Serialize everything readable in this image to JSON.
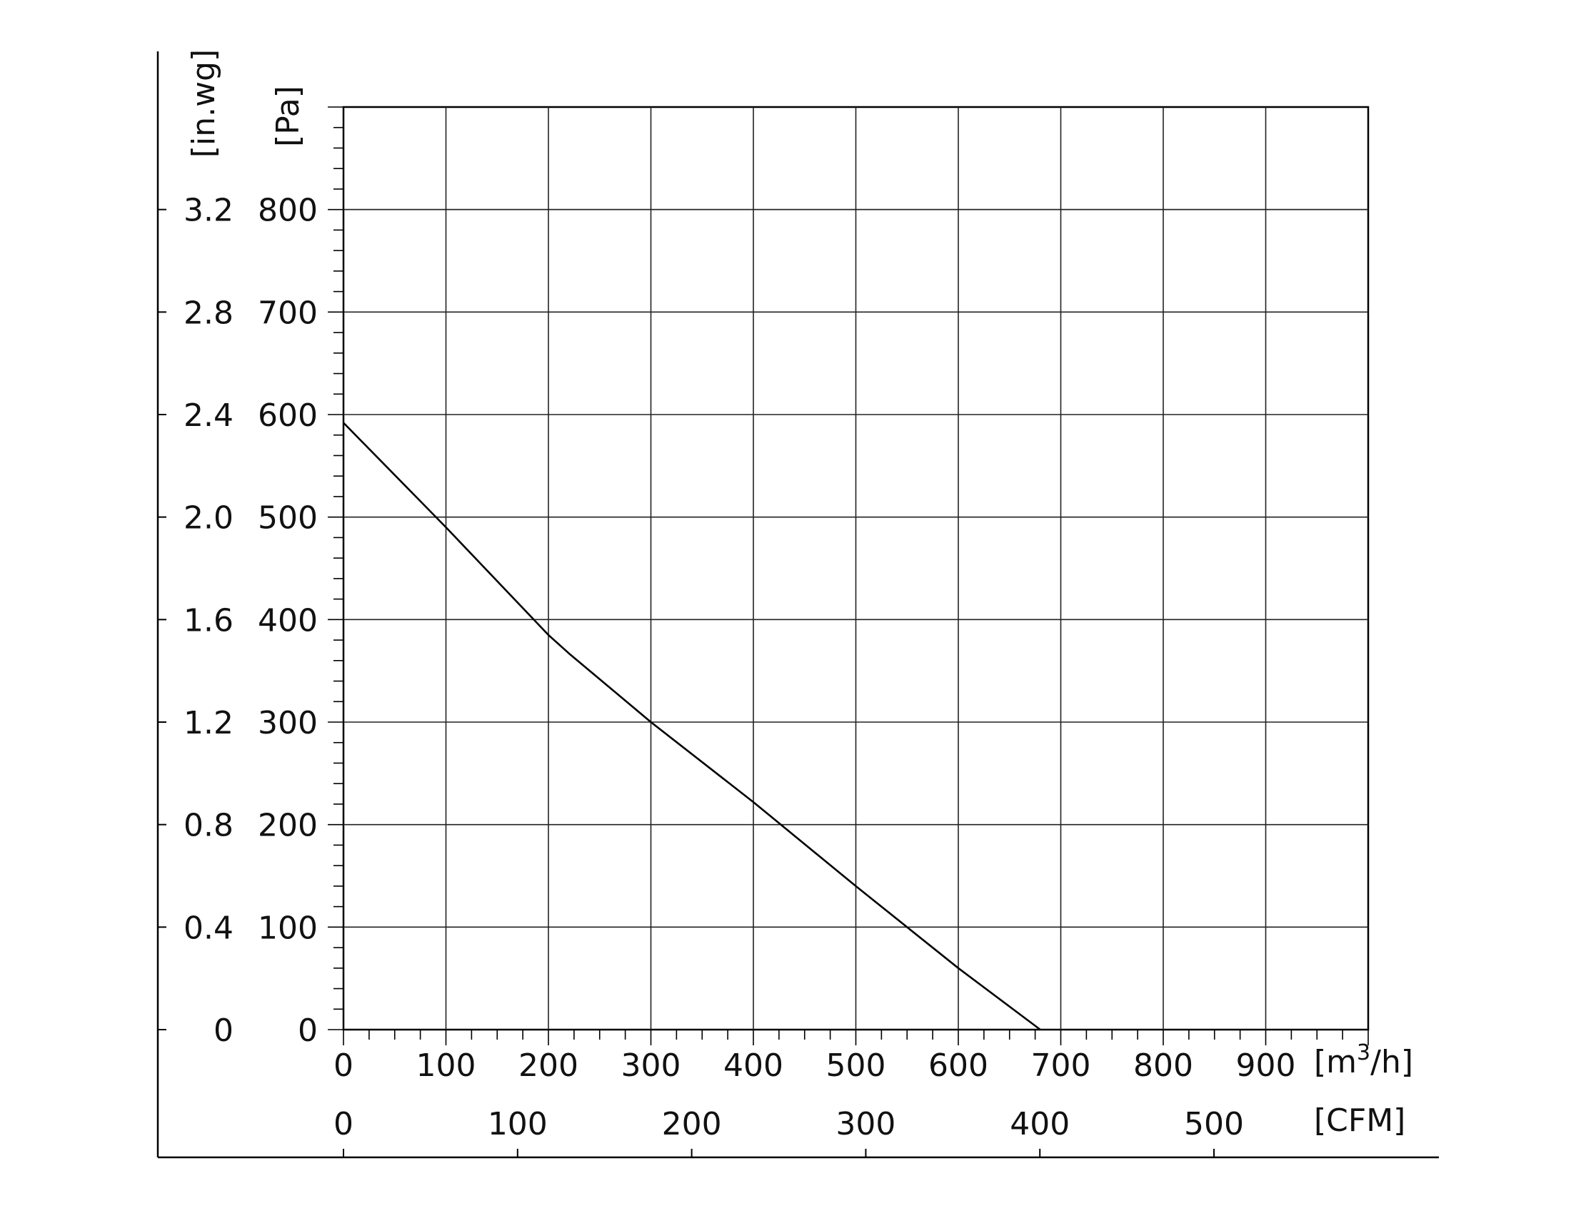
{
  "chart_data": {
    "type": "line",
    "title": "",
    "xlabel": "[m3/h]",
    "xlabel_secondary": "[CFM]",
    "ylabel": "[Pa]",
    "ylabel_secondary": "[in.wg]",
    "xlim": [
      0,
      1000
    ],
    "ylim": [
      0,
      900
    ],
    "grid": true,
    "x_ticks": [
      {
        "value": 0,
        "label": "0"
      },
      {
        "value": 100,
        "label": "100"
      },
      {
        "value": 200,
        "label": "200"
      },
      {
        "value": 300,
        "label": "300"
      },
      {
        "value": 400,
        "label": "400"
      },
      {
        "value": 500,
        "label": "500"
      },
      {
        "value": 600,
        "label": "600"
      },
      {
        "value": 700,
        "label": "700"
      },
      {
        "value": 800,
        "label": "800"
      },
      {
        "value": 900,
        "label": "900"
      }
    ],
    "x_secondary_ticks": [
      {
        "value": 0,
        "label": "0"
      },
      {
        "value": 100,
        "label": "100"
      },
      {
        "value": 200,
        "label": "200"
      },
      {
        "value": 300,
        "label": "300"
      },
      {
        "value": 400,
        "label": "400"
      },
      {
        "value": 500,
        "label": "500"
      }
    ],
    "y_ticks": [
      {
        "value": 0,
        "label": "0"
      },
      {
        "value": 100,
        "label": "100"
      },
      {
        "value": 200,
        "label": "200"
      },
      {
        "value": 300,
        "label": "300"
      },
      {
        "value": 400,
        "label": "400"
      },
      {
        "value": 500,
        "label": "500"
      },
      {
        "value": 600,
        "label": "600"
      },
      {
        "value": 700,
        "label": "700"
      },
      {
        "value": 800,
        "label": "800"
      }
    ],
    "y_secondary_ticks": [
      {
        "value": 0,
        "label": "0"
      },
      {
        "value": 0.4,
        "label": "0.4"
      },
      {
        "value": 0.8,
        "label": "0.8"
      },
      {
        "value": 1.2,
        "label": "1.2"
      },
      {
        "value": 1.6,
        "label": "1.6"
      },
      {
        "value": 2.0,
        "label": "2.0"
      },
      {
        "value": 2.4,
        "label": "2.4"
      },
      {
        "value": 2.8,
        "label": "2.8"
      },
      {
        "value": 3.2,
        "label": "3.2"
      }
    ],
    "series": [
      {
        "x": [
          0,
          100,
          200,
          220,
          300,
          400,
          500,
          600,
          680
        ],
        "y": [
          592,
          490,
          385,
          367,
          300,
          222,
          140,
          60,
          0
        ]
      }
    ],
    "colors": {
      "line": "#000000",
      "grid": "#222222",
      "text": "#111111"
    }
  }
}
